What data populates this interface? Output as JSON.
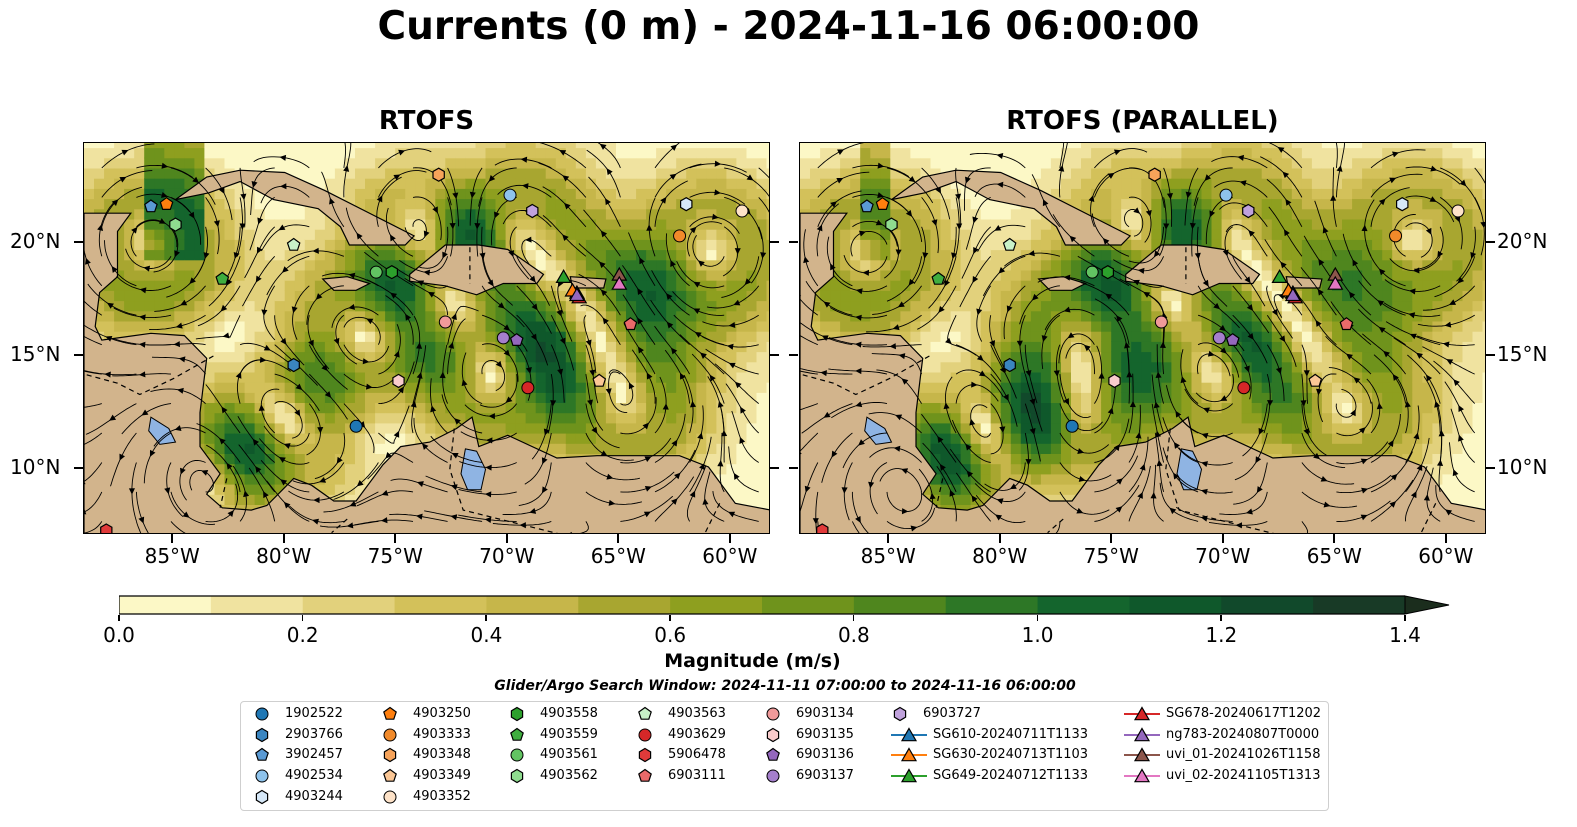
{
  "title": "Currents (0 m) - 2024-11-16 06:00:00",
  "panels": [
    {
      "title": "RTOFS",
      "variant": "a"
    },
    {
      "title": "RTOFS (PARALLEL)",
      "variant": "b"
    }
  ],
  "axes": {
    "x_ticks": [
      "85°W",
      "80°W",
      "75°W",
      "70°W",
      "65°W",
      "60°W"
    ],
    "y_ticks": [
      "20°N",
      "15°N",
      "10°N"
    ],
    "x_tick_values": [
      -85,
      -80,
      -75,
      -70,
      -65,
      -60
    ],
    "y_tick_values": [
      20,
      15,
      10
    ],
    "lon_range": [
      -89,
      -58.2
    ],
    "lat_range": [
      7.1,
      24.4
    ]
  },
  "colorbar": {
    "label": "Magnitude (m/s)",
    "ticks": [
      "0.0",
      "0.2",
      "0.4",
      "0.6",
      "0.8",
      "1.0",
      "1.2",
      "1.4"
    ],
    "tick_values": [
      0,
      0.2,
      0.4,
      0.6,
      0.8,
      1.0,
      1.2,
      1.4
    ],
    "range": [
      0,
      1.5
    ],
    "extend": "max",
    "colors": [
      "#fcf8c6",
      "#f0e3a0",
      "#e2d17c",
      "#d3c15a",
      "#c6b64a",
      "#a8a630",
      "#8e9f1f",
      "#6f931c",
      "#4f861e",
      "#2d7726",
      "#14652d",
      "#0f582b",
      "#11492b",
      "#183a26",
      "#1b2d1d"
    ]
  },
  "colors": {
    "land": "#d2b48c",
    "lake": "#8fb4e3",
    "ocean_base": "#e8d988",
    "strong_current": "#4f861e"
  },
  "search_window": "Glider/Argo Search Window: 2024-11-11 07:00:00 to 2024-11-16 06:00:00",
  "legend": {
    "columns": [
      [
        {
          "label": "1902522",
          "marker": "circle",
          "color": "#1f77b4"
        },
        {
          "label": "2903766",
          "marker": "hexagon",
          "color": "#3a85c0"
        },
        {
          "label": "3902457",
          "marker": "pentagon",
          "color": "#5a9ad4"
        },
        {
          "label": "4902534",
          "marker": "circle",
          "color": "#8ec3ec"
        },
        {
          "label": "4903244",
          "marker": "hexagon",
          "color": "#d6e8f8"
        }
      ],
      [
        {
          "label": "4903250",
          "marker": "pentagon",
          "color": "#ff7f0e"
        },
        {
          "label": "4903333",
          "marker": "circle",
          "color": "#f28a2a"
        },
        {
          "label": "4903348",
          "marker": "hexagon",
          "color": "#f6a35a"
        },
        {
          "label": "4903349",
          "marker": "pentagon",
          "color": "#fbc796"
        },
        {
          "label": "4903352",
          "marker": "circle",
          "color": "#fde2c8"
        }
      ],
      [
        {
          "label": "4903558",
          "marker": "hexagon",
          "color": "#2ca02c"
        },
        {
          "label": "4903559",
          "marker": "pentagon",
          "color": "#3fae3f"
        },
        {
          "label": "4903561",
          "marker": "circle",
          "color": "#62c462"
        },
        {
          "label": "4903562",
          "marker": "hexagon",
          "color": "#8fdc8f"
        }
      ],
      [
        {
          "label": "4903563",
          "marker": "pentagon",
          "color": "#c8f2c8"
        },
        {
          "label": "4903629",
          "marker": "circle",
          "color": "#d62728"
        },
        {
          "label": "5906478",
          "marker": "hexagon",
          "color": "#e03a3a"
        },
        {
          "label": "6903111",
          "marker": "pentagon",
          "color": "#ea6a6a"
        }
      ],
      [
        {
          "label": "6903134",
          "marker": "circle",
          "color": "#f19a9a"
        },
        {
          "label": "6903135",
          "marker": "hexagon",
          "color": "#f9cccc"
        },
        {
          "label": "6903136",
          "marker": "pentagon",
          "color": "#9467bd"
        },
        {
          "label": "6903137",
          "marker": "circle",
          "color": "#a57fcc"
        }
      ],
      [
        {
          "label": "6903727",
          "marker": "hexagon",
          "color": "#c0a2dc"
        },
        {
          "label": "SG610-20240711T1133",
          "marker": "triangle-line",
          "color": "#1f77b4"
        },
        {
          "label": "SG630-20240713T1103",
          "marker": "triangle-line",
          "color": "#ff7f0e"
        },
        {
          "label": "SG649-20240712T1133",
          "marker": "triangle-line",
          "color": "#2ca02c"
        }
      ],
      [
        {
          "label": "SG678-20240617T1202",
          "marker": "triangle-line",
          "color": "#d62728"
        },
        {
          "label": "ng783-20240807T0000",
          "marker": "triangle-line",
          "color": "#9467bd"
        },
        {
          "label": "uvi_01-20241026T1158",
          "marker": "triangle-line",
          "color": "#8c564b"
        },
        {
          "label": "uvi_02-20241105T1313",
          "marker": "triangle-line",
          "color": "#e377c2"
        }
      ]
    ]
  },
  "platforms": [
    {
      "id": "1902522",
      "lon": -76.8,
      "lat": 11.9
    },
    {
      "id": "2903766",
      "lon": -79.6,
      "lat": 14.6
    },
    {
      "id": "3902457",
      "lon": -86.0,
      "lat": 21.6
    },
    {
      "id": "4902534",
      "lon": -69.9,
      "lat": 22.1
    },
    {
      "id": "4903244",
      "lon": -62.0,
      "lat": 21.7
    },
    {
      "id": "4903250",
      "lon": -85.3,
      "lat": 21.7
    },
    {
      "id": "4903333",
      "lon": -62.3,
      "lat": 20.3
    },
    {
      "id": "4903348",
      "lon": -73.1,
      "lat": 23.0
    },
    {
      "id": "4903349",
      "lon": -65.9,
      "lat": 13.9
    },
    {
      "id": "4903352",
      "lon": -59.5,
      "lat": 21.4
    },
    {
      "id": "4903558",
      "lon": -75.2,
      "lat": 18.7
    },
    {
      "id": "4903559",
      "lon": -82.8,
      "lat": 18.4
    },
    {
      "id": "4903561",
      "lon": -75.9,
      "lat": 18.7
    },
    {
      "id": "4903562",
      "lon": -84.9,
      "lat": 20.8
    },
    {
      "id": "4903563",
      "lon": -79.6,
      "lat": 19.9
    },
    {
      "id": "4903629",
      "lon": -69.1,
      "lat": 13.6
    },
    {
      "id": "5906478",
      "lon": -88.0,
      "lat": 7.3
    },
    {
      "id": "6903111",
      "lon": -64.5,
      "lat": 16.4
    },
    {
      "id": "6903134",
      "lon": -72.8,
      "lat": 16.5
    },
    {
      "id": "6903135",
      "lon": -74.9,
      "lat": 13.9
    },
    {
      "id": "6903136",
      "lon": -69.6,
      "lat": 15.7
    },
    {
      "id": "6903137",
      "lon": -70.2,
      "lat": 15.8
    },
    {
      "id": "6903727",
      "lon": -68.9,
      "lat": 21.4
    },
    {
      "id": "SG610-20240711T1133",
      "lon": -66.9,
      "lat": 17.8
    },
    {
      "id": "SG630-20240713T1103",
      "lon": -67.1,
      "lat": 17.9
    },
    {
      "id": "SG649-20240712T1133",
      "lon": -67.5,
      "lat": 18.5
    },
    {
      "id": "SG678-20240617T1202",
      "lon": -66.8,
      "lat": 17.6
    },
    {
      "id": "ng783-20240807T0000",
      "lon": -66.9,
      "lat": 17.7
    },
    {
      "id": "uvi_01-20241026T1158",
      "lon": -65.0,
      "lat": 18.6
    },
    {
      "id": "uvi_02-20241105T1313",
      "lon": -65.0,
      "lat": 18.2
    }
  ]
}
